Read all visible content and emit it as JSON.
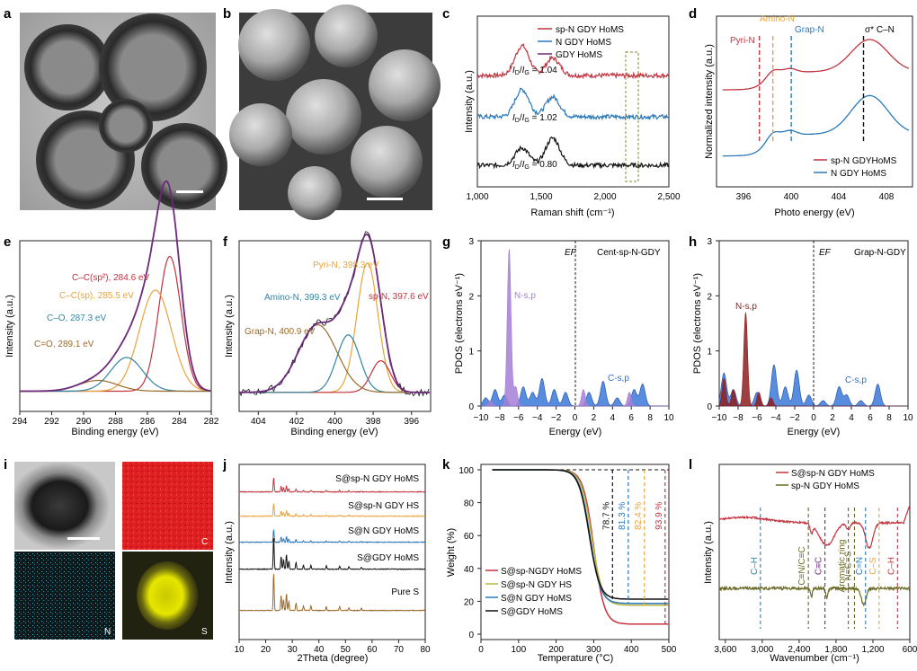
{
  "figure": {
    "panels": {
      "a": {
        "letter": "a",
        "type": "micrograph",
        "description_text": ""
      },
      "b": {
        "letter": "b",
        "type": "micrograph",
        "description_text": ""
      },
      "c": {
        "letter": "c"
      },
      "d": {
        "letter": "d"
      },
      "e": {
        "letter": "e"
      },
      "f": {
        "letter": "f"
      },
      "g": {
        "letter": "g"
      },
      "h": {
        "letter": "h"
      },
      "i": {
        "letter": "i",
        "maps": [
          "C",
          "N",
          "S"
        ]
      },
      "j": {
        "letter": "j"
      },
      "k": {
        "letter": "k"
      },
      "l": {
        "letter": "l"
      }
    },
    "colors": {
      "red": "#c2333f",
      "blue": "#2a78b8",
      "black": "#111111",
      "purple": "#6b2a7a",
      "orange": "#e8a43a",
      "teal": "#2f86a6",
      "brown": "#9a6a2a",
      "olive": "#6a6a26",
      "yellow_green": "#b8b640",
      "pdos_blue": "#2d6fd6",
      "pdos_purple": "#a57fd6",
      "pdos_darkred": "#8c1e1e"
    }
  },
  "chart_data": [
    {
      "id": "c",
      "type": "line",
      "xlabel": "Raman shift (cm⁻¹)",
      "ylabel": "Intensity (a.u.)",
      "xlim": [
        1000,
        2500
      ],
      "xticks": [
        "1,000",
        "1,500",
        "2,000",
        "2,500"
      ],
      "series": [
        {
          "name": "sp-N GDY HoMS",
          "color": "#c2333f",
          "ratio": "1.04",
          "offset": 2.0,
          "peaks": [
            [
              1350,
              0.6
            ],
            [
              1590,
              0.35
            ]
          ]
        },
        {
          "name": "N GDY HoMS",
          "color": "#2a78b8",
          "ratio": "1.02",
          "offset": 1.0,
          "peaks": [
            [
              1350,
              0.55
            ],
            [
              1590,
              0.4
            ]
          ]
        },
        {
          "name": "GDY HoMS",
          "color": "#111111",
          "ratio": "0.80",
          "offset": 0.0,
          "peaks": [
            [
              1350,
              0.35
            ],
            [
              1590,
              0.55
            ]
          ]
        }
      ],
      "legend": [
        "sp-N GDY HoMS",
        "N GDY HoMS",
        "GDY HoMS"
      ],
      "ratio_label": "ID/IG"
    },
    {
      "id": "d",
      "type": "line",
      "xlabel": "Photo energy (eV)",
      "ylabel": "Normalized intensity (a.u.)",
      "xlim": [
        394,
        410
      ],
      "xticks": [
        "396",
        "400",
        "404",
        "408"
      ],
      "markers": [
        {
          "label": "Pyri-N",
          "x": 397.5,
          "color": "#c2333f"
        },
        {
          "label": "Amino-N",
          "x": 398.6,
          "color": "#e8a43a"
        },
        {
          "label": "Grap-N",
          "x": 400.1,
          "color": "#2a78b8"
        },
        {
          "label": "σ* C–N",
          "x": 406.0,
          "color": "#111111"
        }
      ],
      "series": [
        {
          "name": "sp-N GDYHoMS",
          "color": "#c2333f"
        },
        {
          "name": "N GDY HoMS",
          "color": "#2a78b8"
        }
      ]
    },
    {
      "id": "e",
      "type": "line",
      "xlabel": "Binding energy (eV)",
      "ylabel": "Intensity (a.u.)",
      "xlim": [
        294,
        282
      ],
      "xticks": [
        "294",
        "292",
        "290",
        "288",
        "286",
        "284",
        "282"
      ],
      "components": [
        {
          "label": "C–C(sp²), 284.6 eV",
          "center": 284.6,
          "color": "#c2333f"
        },
        {
          "label": "C–C(sp), 285.5 eV",
          "center": 285.5,
          "color": "#e8a43a"
        },
        {
          "label": "C–O, 287.3 eV",
          "center": 287.3,
          "color": "#2f86a6"
        },
        {
          "label": "C=O, 289.1 eV",
          "center": 289.1,
          "color": "#9a6a2a"
        }
      ]
    },
    {
      "id": "f",
      "type": "line",
      "xlabel": "Binding energy (eV)",
      "ylabel": "Intensity (a.u.)",
      "xlim": [
        405,
        395
      ],
      "xticks": [
        "404",
        "402",
        "400",
        "398",
        "396"
      ],
      "components": [
        {
          "label": "Pyri-N, 398.3 eV",
          "center": 398.3,
          "color": "#e8a43a"
        },
        {
          "label": "sp-N, 397.6 eV",
          "center": 397.6,
          "color": "#c2333f"
        },
        {
          "label": "Amino-N, 399.3 eV",
          "center": 399.3,
          "color": "#2f86a6"
        },
        {
          "label": "Grap-N, 400.9 eV",
          "center": 400.9,
          "color": "#9a6a2a"
        }
      ]
    },
    {
      "id": "g",
      "type": "area",
      "title": "Cent-sp-N-GDY",
      "ef_label": "EF",
      "xlabel": "Energy (eV)",
      "ylabel": "PDOS (electrons eV⁻¹)",
      "xlim": [
        -10,
        10
      ],
      "ylim": [
        0,
        3
      ],
      "xticks": [
        "−10",
        "−8",
        "−6",
        "−4",
        "−2",
        "0",
        "2",
        "4",
        "6",
        "8",
        "10"
      ],
      "yticks": [
        "0",
        "1",
        "2",
        "3"
      ],
      "series": [
        {
          "name": "N-s,p",
          "color": "#a57fd6"
        },
        {
          "name": "C-s,p",
          "color": "#2d6fd6"
        }
      ]
    },
    {
      "id": "h",
      "type": "area",
      "title": "Grap-N-GDY",
      "ef_label": "EF",
      "xlabel": "Energy (eV)",
      "ylabel": "PDOS (electrons eV⁻¹)",
      "xlim": [
        -10,
        10
      ],
      "ylim": [
        0,
        3
      ],
      "xticks": [
        "−10",
        "−8",
        "−6",
        "−4",
        "−2",
        "0",
        "2",
        "4",
        "6",
        "8",
        "10"
      ],
      "yticks": [
        "0",
        "1",
        "2",
        "3"
      ],
      "series": [
        {
          "name": "N-s,p",
          "color": "#8c1e1e"
        },
        {
          "name": "C-s,p",
          "color": "#2d6fd6"
        }
      ]
    },
    {
      "id": "j",
      "type": "line",
      "xlabel": "2Theta (degree)",
      "ylabel": "Intensity (a.u.)",
      "xlim": [
        10,
        80
      ],
      "xticks": [
        "10",
        "20",
        "30",
        "40",
        "50",
        "60",
        "70",
        "80"
      ],
      "series": [
        {
          "name": "S@sp-N GDY HoMS",
          "color": "#c2333f"
        },
        {
          "name": "S@sp-N GDY HS",
          "color": "#e8a43a"
        },
        {
          "name": "S@N GDY HoMS",
          "color": "#2a78b8"
        },
        {
          "name": "S@GDY HoMS",
          "color": "#111111"
        },
        {
          "name": "Pure S",
          "color": "#9a6a2a"
        }
      ]
    },
    {
      "id": "k",
      "type": "line",
      "xlabel": "Temperature (°C)",
      "ylabel": "Weight (%)",
      "xlim": [
        0,
        500
      ],
      "ylim": [
        0,
        100
      ],
      "xticks": [
        "0",
        "100",
        "200",
        "300",
        "400",
        "500"
      ],
      "yticks": [
        "0",
        "20",
        "40",
        "60",
        "80",
        "100"
      ],
      "losses": [
        {
          "label": "78.7 %",
          "value": 78.7,
          "color": "#111111"
        },
        {
          "label": "81.3 %",
          "value": 81.3,
          "color": "#2a78b8"
        },
        {
          "label": "82.4 %",
          "value": 82.4,
          "color": "#e8a43a"
        },
        {
          "label": "93.9 %",
          "value": 93.9,
          "color": "#c2333f"
        }
      ],
      "series": [
        {
          "name": "S@sp-NGDY HoMS",
          "color": "#c2333f",
          "residual": 6.1
        },
        {
          "name": "S@sp-N GDY HS",
          "color": "#b8b640",
          "residual": 17.6
        },
        {
          "name": "S@N GDY HoMS",
          "color": "#2a78b8",
          "residual": 18.7
        },
        {
          "name": "S@GDY HoMS",
          "color": "#111111",
          "residual": 21.3
        }
      ]
    },
    {
      "id": "l",
      "type": "line",
      "xlabel": "Wavenumber (cm⁻¹)",
      "ylabel": "Intensity (a.u.)",
      "xlim": [
        3600,
        600
      ],
      "xticks": [
        "3,600",
        "3,000",
        "2,400",
        "1,800",
        "1,200",
        "600"
      ],
      "bands": [
        {
          "label": "C–H",
          "x": 3030,
          "color": "#2f86a6"
        },
        {
          "label": "C≡N/C≡C",
          "x": 2250,
          "color": "#6a6a26"
        },
        {
          "label": "C≡C",
          "x": 1980,
          "color": "#6b2a7a"
        },
        {
          "label": "Aromatic ring",
          "x": 1600,
          "color": "#6a6a26"
        },
        {
          "label": "N=C=S",
          "x": 1500,
          "color": "#6a6a26"
        },
        {
          "label": "C=N",
          "x": 1320,
          "color": "#2a78b8"
        },
        {
          "label": "C–S",
          "x": 1100,
          "color": "#e8a43a"
        },
        {
          "label": "C–H",
          "x": 800,
          "color": "#c2333f"
        }
      ],
      "series": [
        {
          "name": "S@sp-N GDY HoMS",
          "color": "#c2333f"
        },
        {
          "name": "sp-N GDY HoMS",
          "color": "#6a6a26"
        }
      ]
    }
  ]
}
